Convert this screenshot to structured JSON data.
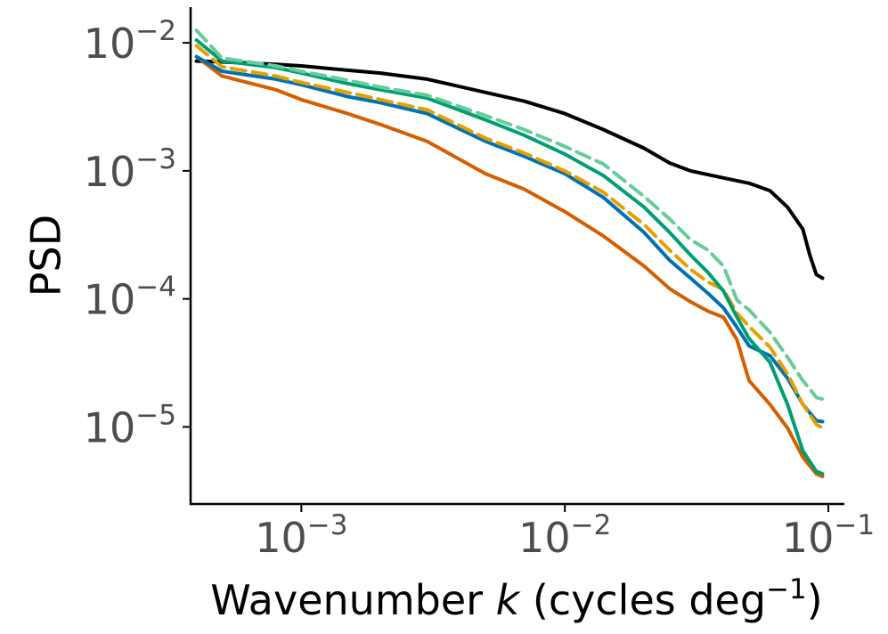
{
  "chart_data": {
    "type": "line",
    "title": "",
    "xlabel_parts": {
      "main": "Wavenumber ",
      "var": "k",
      "unit": " (cycles deg",
      "sup": "−1",
      "close": ")"
    },
    "ylabel": "PSD",
    "xscale": "log",
    "yscale": "log",
    "xlim": [
      0.00038,
      0.115
    ],
    "ylim": [
      2.5e-06,
      0.019
    ],
    "grid": false,
    "legend": "none",
    "x_ticks": [
      {
        "value": 0.001,
        "base": "10",
        "exp": "−3"
      },
      {
        "value": 0.01,
        "base": "10",
        "exp": "−2"
      },
      {
        "value": 0.1,
        "base": "10",
        "exp": "−1"
      }
    ],
    "y_ticks": [
      {
        "value": 0.01,
        "base": "10",
        "exp": "−2"
      },
      {
        "value": 0.001,
        "base": "10",
        "exp": "−3"
      },
      {
        "value": 0.0001,
        "base": "10",
        "exp": "−4"
      },
      {
        "value": 1e-05,
        "base": "10",
        "exp": "−5"
      }
    ],
    "series": [
      {
        "name": "black",
        "color": "#000000",
        "dash": "solid",
        "points": [
          [
            0.0004,
            0.0072
          ],
          [
            0.0005,
            0.0071
          ],
          [
            0.0008,
            0.0068
          ],
          [
            0.001,
            0.0066
          ],
          [
            0.0015,
            0.0061
          ],
          [
            0.002,
            0.0058
          ],
          [
            0.003,
            0.0052
          ],
          [
            0.005,
            0.0041
          ],
          [
            0.007,
            0.0035
          ],
          [
            0.01,
            0.0028
          ],
          [
            0.014,
            0.0021
          ],
          [
            0.02,
            0.0015
          ],
          [
            0.025,
            0.00115
          ],
          [
            0.03,
            0.001
          ],
          [
            0.04,
            0.00088
          ],
          [
            0.05,
            0.0008
          ],
          [
            0.06,
            0.0007
          ],
          [
            0.07,
            0.00052
          ],
          [
            0.08,
            0.00035
          ],
          [
            0.085,
            0.00022
          ],
          [
            0.09,
            0.000155
          ],
          [
            0.095,
            0.000145
          ]
        ]
      },
      {
        "name": "orange",
        "color": "#d55e00",
        "dash": "solid",
        "points": [
          [
            0.0004,
            0.0078
          ],
          [
            0.0005,
            0.0055
          ],
          [
            0.0008,
            0.0043
          ],
          [
            0.001,
            0.0036
          ],
          [
            0.0015,
            0.0028
          ],
          [
            0.002,
            0.0023
          ],
          [
            0.003,
            0.0017
          ],
          [
            0.005,
            0.00095
          ],
          [
            0.007,
            0.00072
          ],
          [
            0.01,
            0.00048
          ],
          [
            0.014,
            0.00031
          ],
          [
            0.02,
            0.00018
          ],
          [
            0.025,
            0.00012
          ],
          [
            0.03,
            9.5e-05
          ],
          [
            0.035,
            8e-05
          ],
          [
            0.04,
            7.2e-05
          ],
          [
            0.045,
            4.8e-05
          ],
          [
            0.05,
            2.3e-05
          ],
          [
            0.06,
            1.5e-05
          ],
          [
            0.07,
            9.8e-06
          ],
          [
            0.08,
            5.8e-06
          ],
          [
            0.09,
            4.3e-06
          ],
          [
            0.095,
            4.1e-06
          ]
        ]
      },
      {
        "name": "blue",
        "color": "#0072b2",
        "dash": "solid",
        "points": [
          [
            0.0004,
            0.0078
          ],
          [
            0.0005,
            0.006
          ],
          [
            0.0008,
            0.0052
          ],
          [
            0.001,
            0.0047
          ],
          [
            0.0015,
            0.0038
          ],
          [
            0.002,
            0.0034
          ],
          [
            0.003,
            0.0028
          ],
          [
            0.005,
            0.0017
          ],
          [
            0.007,
            0.0013
          ],
          [
            0.01,
            0.00095
          ],
          [
            0.014,
            0.00062
          ],
          [
            0.02,
            0.00033
          ],
          [
            0.025,
            0.0002
          ],
          [
            0.03,
            0.000145
          ],
          [
            0.035,
            0.00011
          ],
          [
            0.04,
            8.5e-05
          ],
          [
            0.045,
            6e-05
          ],
          [
            0.05,
            4.3e-05
          ],
          [
            0.06,
            3.6e-05
          ],
          [
            0.07,
            2.4e-05
          ],
          [
            0.08,
            1.5e-05
          ],
          [
            0.09,
            1.12e-05
          ],
          [
            0.095,
            1.1e-05
          ]
        ]
      },
      {
        "name": "yellow-dashed",
        "color": "#e69f00",
        "dash": "dashed",
        "points": [
          [
            0.0004,
            0.0095
          ],
          [
            0.0005,
            0.0065
          ],
          [
            0.0008,
            0.0055
          ],
          [
            0.001,
            0.0049
          ],
          [
            0.0015,
            0.0041
          ],
          [
            0.002,
            0.0036
          ],
          [
            0.003,
            0.003
          ],
          [
            0.005,
            0.0018
          ],
          [
            0.007,
            0.00138
          ],
          [
            0.01,
            0.001
          ],
          [
            0.014,
            0.00068
          ],
          [
            0.02,
            0.00038
          ],
          [
            0.025,
            0.00024
          ],
          [
            0.03,
            0.00017
          ],
          [
            0.035,
            0.000135
          ],
          [
            0.04,
            0.000118
          ],
          [
            0.045,
            7.75e-05
          ],
          [
            0.05,
            6.1e-05
          ],
          [
            0.06,
            4.2e-05
          ],
          [
            0.07,
            2.6e-05
          ],
          [
            0.08,
            1.5e-05
          ],
          [
            0.09,
            1.05e-05
          ],
          [
            0.095,
            9.8e-06
          ]
        ]
      },
      {
        "name": "green",
        "color": "#009e73",
        "dash": "solid",
        "points": [
          [
            0.0004,
            0.0105
          ],
          [
            0.0005,
            0.0072
          ],
          [
            0.0008,
            0.0064
          ],
          [
            0.001,
            0.0058
          ],
          [
            0.0015,
            0.0048
          ],
          [
            0.002,
            0.0043
          ],
          [
            0.003,
            0.0037
          ],
          [
            0.005,
            0.0025
          ],
          [
            0.007,
            0.0019
          ],
          [
            0.01,
            0.00135
          ],
          [
            0.014,
            0.00092
          ],
          [
            0.02,
            0.00052
          ],
          [
            0.025,
            0.00033
          ],
          [
            0.03,
            0.00022
          ],
          [
            0.035,
            0.00016
          ],
          [
            0.04,
            0.000115
          ],
          [
            0.045,
            7.2e-05
          ],
          [
            0.05,
            4.9e-05
          ],
          [
            0.06,
            3.2e-05
          ],
          [
            0.07,
            1.5e-05
          ],
          [
            0.08,
            6.5e-06
          ],
          [
            0.09,
            4.5e-06
          ],
          [
            0.095,
            4.3e-06
          ]
        ]
      },
      {
        "name": "light-green-dashed",
        "color": "#66cc99",
        "dash": "dashed",
        "points": [
          [
            0.0004,
            0.0125
          ],
          [
            0.0005,
            0.0076
          ],
          [
            0.0008,
            0.0066
          ],
          [
            0.001,
            0.006
          ],
          [
            0.0015,
            0.0051
          ],
          [
            0.002,
            0.0045
          ],
          [
            0.003,
            0.0039
          ],
          [
            0.005,
            0.0027
          ],
          [
            0.007,
            0.0021
          ],
          [
            0.01,
            0.00155
          ],
          [
            0.014,
            0.00113
          ],
          [
            0.02,
            0.00063
          ],
          [
            0.025,
            0.00042
          ],
          [
            0.03,
            0.00029
          ],
          [
            0.035,
            0.00024
          ],
          [
            0.04,
            0.00018
          ],
          [
            0.045,
            9.8e-05
          ],
          [
            0.05,
            8.2e-05
          ],
          [
            0.06,
            5.5e-05
          ],
          [
            0.07,
            3.5e-05
          ],
          [
            0.08,
            2.3e-05
          ],
          [
            0.09,
            1.7e-05
          ],
          [
            0.095,
            1.65e-05
          ]
        ]
      }
    ]
  }
}
